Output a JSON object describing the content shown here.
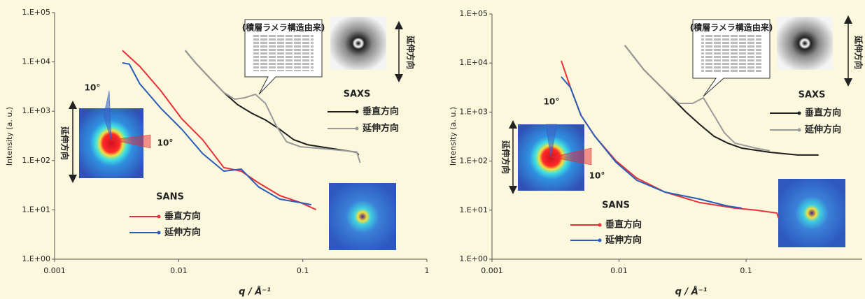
{
  "chart_data": [
    {
      "type": "line",
      "xscale": "log",
      "yscale": "log",
      "x_label": "q / Å⁻¹",
      "y_label": "Intensity (a. u.)",
      "xlim": [
        0.001,
        1
      ],
      "xticks": [
        0.001,
        0.01,
        0.1,
        1
      ],
      "ylim": [
        1,
        100000
      ],
      "yticks": [
        {
          "value": 1,
          "label": "1.E+00"
        },
        {
          "value": 10,
          "label": "1.E+01"
        },
        {
          "value": 100,
          "label": "1.E+02"
        },
        {
          "value": 1000,
          "label": "1.E+03"
        },
        {
          "value": 10000,
          "label": "1.E+04"
        },
        {
          "value": 100000,
          "label": "1.E+05"
        }
      ],
      "series": [
        {
          "group": "SAXS",
          "name": "垂直方向",
          "color": "#1e1e1e",
          "x": [
            0.0113,
            0.0137,
            0.0178,
            0.0231,
            0.0299,
            0.0388,
            0.0502,
            0.0652,
            0.0845,
            0.109,
            0.161,
            0.272,
            0.282
          ],
          "values": [
            17000,
            9500,
            4700,
            2400,
            1350,
            910,
            660,
            430,
            264,
            210,
            179,
            147,
            130
          ]
        },
        {
          "group": "SAXS",
          "name": "延伸方向",
          "color": "#9a9a9a",
          "x": [
            0.0113,
            0.0137,
            0.0178,
            0.0231,
            0.0282,
            0.034,
            0.0415,
            0.05,
            0.061,
            0.074,
            0.096,
            0.161,
            0.272,
            0.29
          ],
          "values": [
            17000,
            9500,
            4700,
            2400,
            1750,
            1870,
            2200,
            1440,
            510,
            240,
            190,
            170,
            150,
            90
          ]
        },
        {
          "group": "SANS",
          "name": "垂直方向",
          "color": "#e8303a",
          "x": [
            0.00352,
            0.00486,
            0.00718,
            0.0106,
            0.0156,
            0.0231,
            0.0319,
            0.0442,
            0.0652,
            0.0962,
            0.128
          ],
          "values": [
            17000,
            8100,
            2590,
            700,
            264,
            72,
            61,
            35,
            19.5,
            14,
            10.1
          ]
        },
        {
          "group": "SANS",
          "name": "延伸方向",
          "color": "#2a5db8",
          "x": [
            0.00352,
            0.004,
            0.00486,
            0.00718,
            0.0106,
            0.0156,
            0.0231,
            0.0319,
            0.0442,
            0.0652,
            0.096,
            0.117
          ],
          "values": [
            9550,
            9000,
            3590,
            1150,
            431,
            138,
            61,
            67,
            29,
            16.5,
            14,
            12.7
          ]
        }
      ],
      "annotations": [
        "(積層ラメラ構造由来)",
        "延伸方向",
        "延伸方向",
        "10°",
        "10°"
      ]
    },
    {
      "type": "line",
      "xscale": "log",
      "yscale": "log",
      "x_label": "q / Å⁻¹",
      "y_label": "Intensity (a. u.)",
      "xlim": [
        0.001,
        0.82
      ],
      "xticks": [
        0.001,
        0.01,
        0.1
      ],
      "ylim": [
        1,
        100000
      ],
      "yticks": [
        {
          "value": 1,
          "label": "1.E+00"
        },
        {
          "value": 10,
          "label": "1.E+01"
        },
        {
          "value": 100,
          "label": "1.E+02"
        },
        {
          "value": 1000,
          "label": "1.E+03"
        },
        {
          "value": 10000,
          "label": "1.E+04"
        },
        {
          "value": 100000,
          "label": "1.E+05"
        }
      ],
      "series": [
        {
          "group": "SAXS",
          "name": "垂直方向",
          "color": "#1e1e1e",
          "x": [
            0.0111,
            0.0157,
            0.023,
            0.0335,
            0.0431,
            0.0558,
            0.0717,
            0.0922,
            0.154,
            0.255,
            0.372
          ],
          "values": [
            22900,
            7240,
            2710,
            1010,
            562,
            321,
            232,
            184,
            151,
            133,
            133
          ]
        },
        {
          "group": "SAXS",
          "name": "延伸方向",
          "color": "#9a9a9a",
          "x": [
            0.0111,
            0.0157,
            0.023,
            0.0296,
            0.038,
            0.0461,
            0.0558,
            0.0675,
            0.0815,
            0.119,
            0.154
          ],
          "values": [
            22900,
            7240,
            2710,
            1500,
            1500,
            1950,
            860,
            378,
            232,
            184,
            162
          ]
        },
        {
          "group": "SANS",
          "name": "垂直方向",
          "color": "#e8303a",
          "x": [
            0.00351,
            0.00414,
            0.00501,
            0.00645,
            0.00944,
            0.0138,
            0.023,
            0.0431,
            0.0815,
            0.119,
            0.175,
            0.18
          ],
          "values": [
            11100,
            3190,
            860,
            321,
            102,
            44.9,
            23.3,
            14.3,
            11,
            10,
            8.7,
            6.9
          ]
        },
        {
          "group": "SANS",
          "name": "延伸方向",
          "color": "#2a5db8",
          "x": [
            0.00351,
            0.00414,
            0.00501,
            0.00645,
            0.00944,
            0.0138,
            0.023,
            0.0431,
            0.0717,
            0.0922
          ],
          "values": [
            5230,
            3190,
            860,
            321,
            95.5,
            40.7,
            23.3,
            16.8,
            12.1,
            11
          ]
        }
      ],
      "annotations": [
        "(積層ラメラ構造由来)",
        "延伸方向",
        "延伸方向",
        "10°",
        "10°"
      ]
    }
  ]
}
